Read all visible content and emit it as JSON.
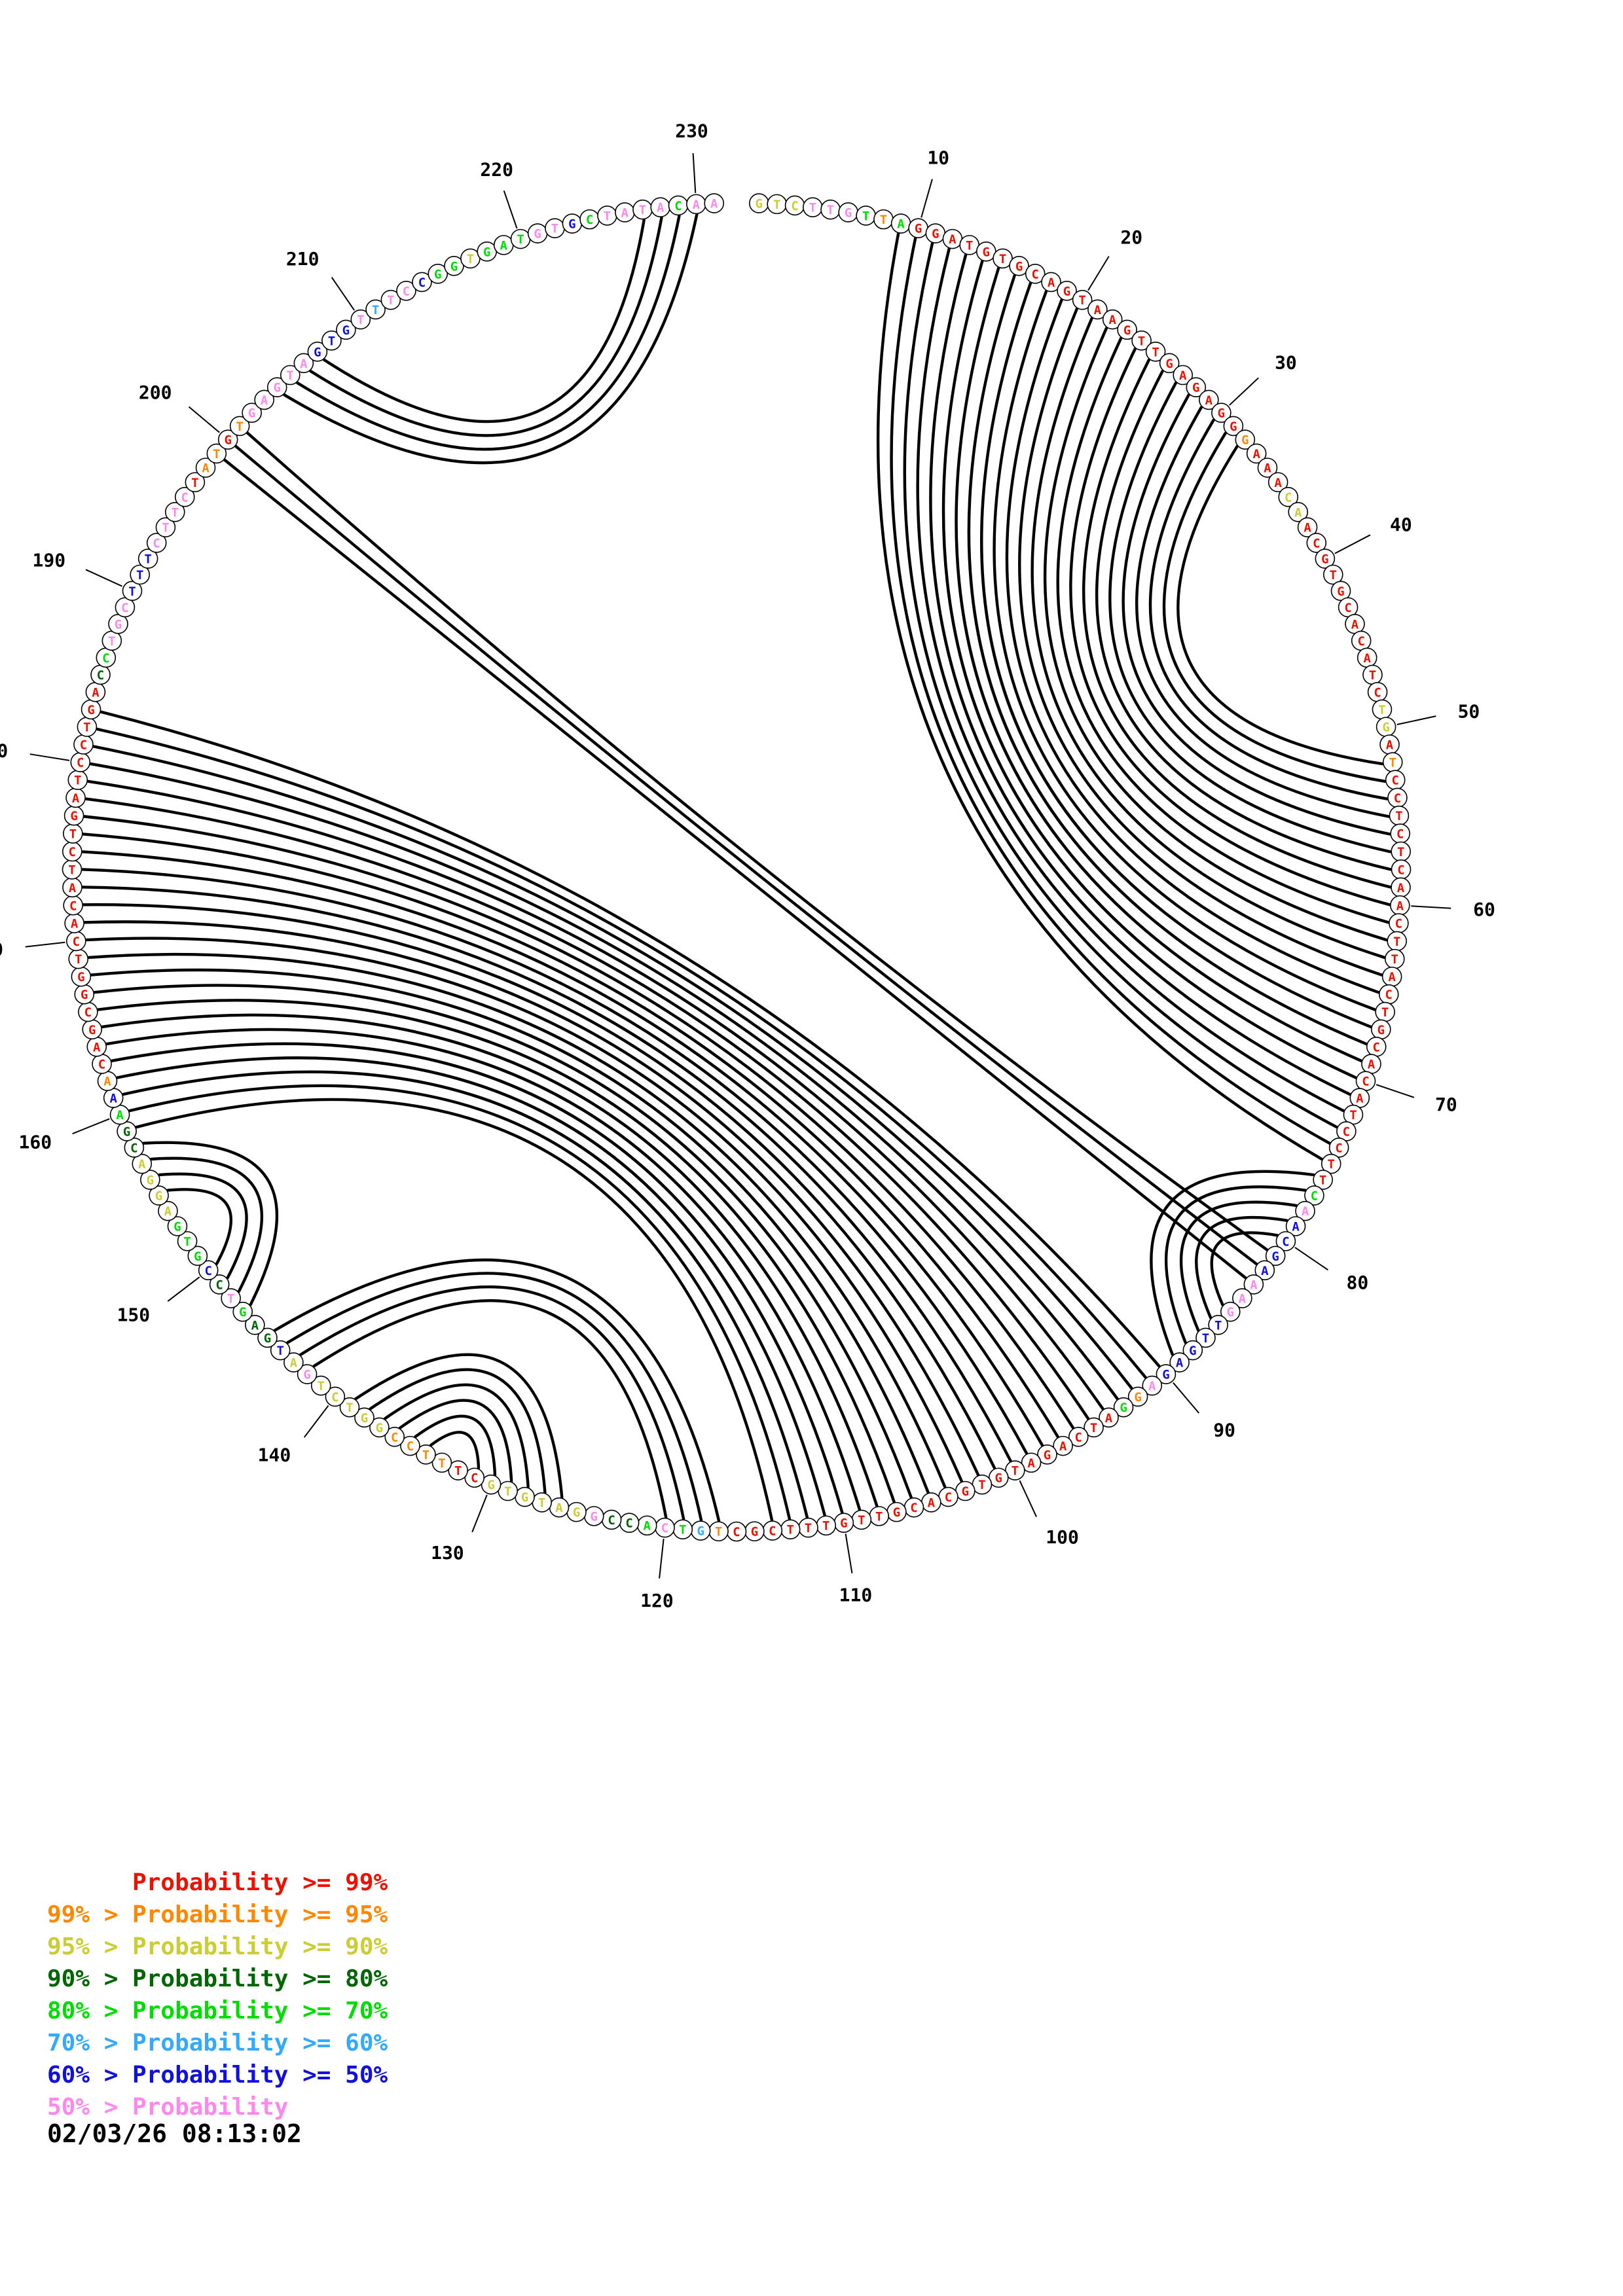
{
  "chart_data": {
    "type": "chord",
    "title": "",
    "description": "Circular base-pair probability plot (circle graph) of a nucleic acid sequence; arcs join paired bases, letter colors encode pair probability class",
    "n_positions": 231,
    "sequence": "GTCTTGTTAGGATGTGCAGTAAGTTGAGAGGGAAACAACGTGCACATCTGATCCTCTCAACTTACTGCACATCCTTCAACGAAAGTTGAGAGGATCAGATGTGCACGTTGTTTCGCTGTCACCGGATGTGCTTTCCGGTCTGATGAGTCCGTGAGGACGAAACAGCGGTCACATCTGATCCTGACCTGCTTTCTTCTATGTGAGTAGTGTTTCCGGTGATGTGCTATACAA",
    "color_classes": "yyypppgogrrrrrrrrrrrrrrrrrrrrrrorrryyrrrrrrrrrrryyrorrrrrrrrrrrrrrrrrrrrrrrrgpbbbbpppbbbbbpogrrrrrrrrrrrrrrrrrrrrrrrosgpgddpyyyyyyrrooooyyyyypybddgpdbgggyyyyddgborrrrrrrrrrrrrrrrrrrrrrdgpppbbbpppprooropp pppbbbpsppbggygggppbgppppgppppd",
    "color_map": {
      "r": "#ee1100",
      "o": "#ff8800",
      "y": "#cccc33",
      "d": "#006600",
      "g": "#00dd00",
      "s": "#33aaff",
      "b": "#1111dd",
      "p": "#ff88ee"
    },
    "position_labels": [
      10,
      20,
      30,
      40,
      50,
      60,
      70,
      80,
      90,
      100,
      110,
      120,
      130,
      140,
      150,
      160,
      170,
      180,
      190,
      200,
      210,
      220,
      230
    ],
    "pairs": [
      [
        9,
        75
      ],
      [
        10,
        74
      ],
      [
        11,
        73
      ],
      [
        12,
        72
      ],
      [
        13,
        71
      ],
      [
        14,
        70
      ],
      [
        15,
        69
      ],
      [
        16,
        68
      ],
      [
        17,
        67
      ],
      [
        18,
        66
      ],
      [
        19,
        65
      ],
      [
        20,
        64
      ],
      [
        21,
        63
      ],
      [
        22,
        62
      ],
      [
        23,
        61
      ],
      [
        24,
        60
      ],
      [
        25,
        59
      ],
      [
        26,
        58
      ],
      [
        27,
        57
      ],
      [
        28,
        56
      ],
      [
        29,
        55
      ],
      [
        30,
        54
      ],
      [
        31,
        53
      ],
      [
        32,
        52
      ],
      [
        76,
        89
      ],
      [
        77,
        88
      ],
      [
        78,
        87
      ],
      [
        79,
        86
      ],
      [
        80,
        85
      ],
      [
        81,
        201
      ],
      [
        82,
        200
      ],
      [
        83,
        199
      ],
      [
        90,
        183
      ],
      [
        91,
        182
      ],
      [
        92,
        181
      ],
      [
        93,
        180
      ],
      [
        94,
        179
      ],
      [
        95,
        178
      ],
      [
        96,
        177
      ],
      [
        97,
        176
      ],
      [
        98,
        175
      ],
      [
        99,
        174
      ],
      [
        100,
        173
      ],
      [
        101,
        172
      ],
      [
        102,
        171
      ],
      [
        103,
        170
      ],
      [
        104,
        169
      ],
      [
        105,
        168
      ],
      [
        106,
        167
      ],
      [
        107,
        166
      ],
      [
        108,
        165
      ],
      [
        109,
        164
      ],
      [
        110,
        163
      ],
      [
        111,
        162
      ],
      [
        112,
        161
      ],
      [
        113,
        160
      ],
      [
        114,
        159
      ],
      [
        117,
        145
      ],
      [
        118,
        144
      ],
      [
        119,
        143
      ],
      [
        120,
        142
      ],
      [
        126,
        139
      ],
      [
        127,
        138
      ],
      [
        128,
        137
      ],
      [
        129,
        136
      ],
      [
        130,
        135
      ],
      [
        131,
        134
      ],
      [
        147,
        158
      ],
      [
        148,
        157
      ],
      [
        149,
        156
      ],
      [
        150,
        155
      ],
      [
        204,
        230
      ],
      [
        205,
        229
      ],
      [
        206,
        228
      ],
      [
        207,
        227
      ]
    ],
    "legend": {
      "rows": [
        {
          "text": "      Probability >= 99%",
          "color": "r"
        },
        {
          "text": "99% > Probability >= 95%",
          "color": "o"
        },
        {
          "text": "95% > Probability >= 90%",
          "color": "y"
        },
        {
          "text": "90% > Probability >= 80%",
          "color": "d"
        },
        {
          "text": "80% > Probability >= 70%",
          "color": "g"
        },
        {
          "text": "70% > Probability >= 60%",
          "color": "s"
        },
        {
          "text": "60% > Probability >= 50%",
          "color": "b"
        },
        {
          "text": "50% > Probability",
          "color": "p"
        }
      ]
    },
    "timestamp": "02/03/26 08:13:02"
  }
}
